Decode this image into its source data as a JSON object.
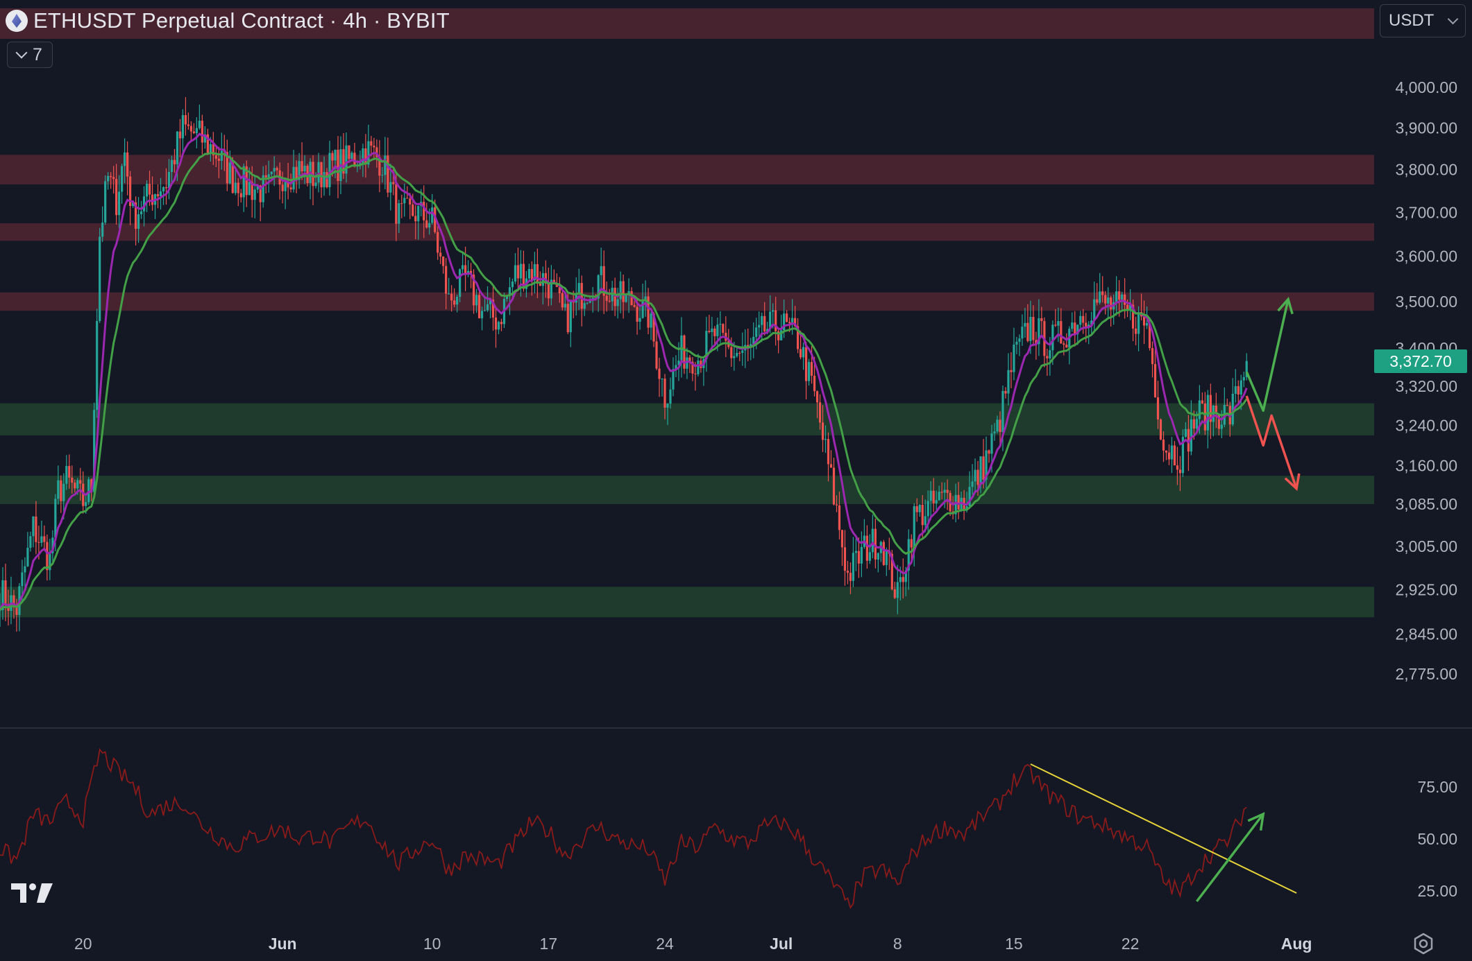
{
  "header": {
    "title": "ETHUSDT Perpetual Contract · 4h · BYBIT",
    "indicator_count": "7",
    "currency": "USDT"
  },
  "price_tag": "3,372.70",
  "colors": {
    "background": "#141824",
    "bull": "#26a69a",
    "bear": "#ef5350",
    "ema_fast": "#9c27b0",
    "ema_slow": "#43a047",
    "resistance_zone": "#4a2430",
    "support_zone": "#1f3d2e",
    "rsi": "#8b1a1a",
    "trendline": "#e6d33a",
    "arrow_up": "#4caf50",
    "arrow_down": "#ef5350"
  },
  "chart_data": [
    {
      "type": "candlestick",
      "title": "ETHUSDT Perpetual Contract · 4h · BYBIT",
      "price_axis": {
        "ticks": [
          "4,000.00",
          "3,900.00",
          "3,800.00",
          "3,700.00",
          "3,600.00",
          "3,500.00",
          "3,400.00",
          "3,320.00",
          "3,240.00",
          "3,160.00",
          "3,085.00",
          "3,005.00",
          "2,925.00",
          "2,845.00",
          "2,775.00"
        ],
        "ylim": [
          2730,
          4080
        ],
        "scale": "log"
      },
      "time_axis": {
        "ticks": [
          "20",
          "Jun",
          "10",
          "17",
          "24",
          "Jul",
          "8",
          "15",
          "22",
          "Aug"
        ],
        "range": [
          "May 15",
          "Aug 1"
        ]
      },
      "last_price": 3372.7,
      "waypoints": [
        [
          "May 15",
          2920
        ],
        [
          "May 16",
          2890
        ],
        [
          "May 17",
          3040
        ],
        [
          "May 18",
          2980
        ],
        [
          "May 18 12h",
          3110
        ],
        [
          "May 19",
          3130
        ],
        [
          "May 20",
          3090
        ],
        [
          "May 20 12h",
          3120
        ],
        [
          "May 21",
          3650
        ],
        [
          "May 21 12h",
          3780
        ],
        [
          "May 22",
          3730
        ],
        [
          "May 22 12h",
          3840
        ],
        [
          "May 23",
          3690
        ],
        [
          "May 24",
          3740
        ],
        [
          "May 25",
          3770
        ],
        [
          "May 26",
          3900
        ],
        [
          "May 27",
          3880
        ],
        [
          "May 28",
          3840
        ],
        [
          "May 29",
          3780
        ],
        [
          "May 30",
          3760
        ],
        [
          "May 31",
          3750
        ],
        [
          "Jun 1",
          3790
        ],
        [
          "Jun 2",
          3800
        ],
        [
          "Jun 3",
          3780
        ],
        [
          "Jun 4",
          3810
        ],
        [
          "Jun 5",
          3820
        ],
        [
          "Jun 6",
          3850
        ],
        [
          "Jun 7",
          3820
        ],
        [
          "Jun 8",
          3690
        ],
        [
          "Jun 9",
          3700
        ],
        [
          "Jun 10",
          3680
        ],
        [
          "Jun 11",
          3500
        ],
        [
          "Jun 12",
          3550
        ],
        [
          "Jun 13",
          3480
        ],
        [
          "Jun 14",
          3460
        ],
        [
          "Jun 15",
          3560
        ],
        [
          "Jun 16",
          3570
        ],
        [
          "Jun 17",
          3540
        ],
        [
          "Jun 18",
          3460
        ],
        [
          "Jun 19",
          3520
        ],
        [
          "Jun 20",
          3550
        ],
        [
          "Jun 21",
          3510
        ],
        [
          "Jun 22",
          3500
        ],
        [
          "Jun 23",
          3470
        ],
        [
          "Jun 24",
          3300
        ],
        [
          "Jun 25",
          3390
        ],
        [
          "Jun 26",
          3380
        ],
        [
          "Jun 27",
          3430
        ],
        [
          "Jun 28",
          3390
        ],
        [
          "Jun 29",
          3390
        ],
        [
          "Jun 30",
          3440
        ],
        [
          "Jul 1",
          3450
        ],
        [
          "Jul 2",
          3420
        ],
        [
          "Jul 3",
          3300
        ],
        [
          "Jul 4",
          3130
        ],
        [
          "Jul 5",
          2950
        ],
        [
          "Jul 6",
          3000
        ],
        [
          "Jul 7",
          3020
        ],
        [
          "Jul 8",
          2910
        ],
        [
          "Jul 9",
          3060
        ],
        [
          "Jul 10",
          3080
        ],
        [
          "Jul 11",
          3100
        ],
        [
          "Jul 12",
          3090
        ],
        [
          "Jul 13",
          3150
        ],
        [
          "Jul 14",
          3230
        ],
        [
          "Jul 15",
          3380
        ],
        [
          "Jul 16",
          3450
        ],
        [
          "Jul 17",
          3410
        ],
        [
          "Jul 18",
          3430
        ],
        [
          "Jul 19",
          3470
        ],
        [
          "Jul 20",
          3500
        ],
        [
          "Jul 21",
          3490
        ],
        [
          "Jul 22",
          3470
        ],
        [
          "Jul 23",
          3450
        ],
        [
          "Jul 24",
          3200
        ],
        [
          "Jul 25",
          3180
        ],
        [
          "Jul 26",
          3260
        ],
        [
          "Jul 27",
          3270
        ],
        [
          "Jul 28",
          3260
        ],
        [
          "Jul 29",
          3372.7
        ]
      ],
      "moving_averages": [
        {
          "color": "#9c27b0",
          "period": 9
        },
        {
          "color": "#43a047",
          "period": 20
        }
      ],
      "zones": [
        {
          "kind": "resistance",
          "from": 3765,
          "to": 3835
        },
        {
          "kind": "resistance",
          "from": 3635,
          "to": 3675
        },
        {
          "kind": "resistance",
          "from": 3480,
          "to": 3520
        },
        {
          "kind": "support",
          "from": 3220,
          "to": 3285
        },
        {
          "kind": "support",
          "from": 3085,
          "to": 3140
        },
        {
          "kind": "support",
          "from": 2875,
          "to": 2930
        }
      ],
      "projections": [
        {
          "direction": "up",
          "path": [
            [
              "Jul 29",
              3350
            ],
            [
              "Jul 30",
              3270
            ],
            [
              "Jul 31 12h",
              3505
            ]
          ]
        },
        {
          "direction": "down",
          "path": [
            [
              "Jul 29",
              3300
            ],
            [
              "Jul 30",
              3200
            ],
            [
              "Jul 30 12h",
              3260
            ],
            [
              "Aug 1",
              3115
            ]
          ]
        }
      ]
    },
    {
      "type": "line",
      "series": [
        {
          "name": "",
          "color": "#8b1a1a"
        }
      ],
      "y_ticks": [
        "75.00",
        "50.00",
        "25.00"
      ],
      "ylim": [
        10,
        95
      ],
      "waypoints": [
        [
          "May 15",
          45
        ],
        [
          "May 16",
          40
        ],
        [
          "May 17",
          62
        ],
        [
          "May 18",
          58
        ],
        [
          "May 19",
          68
        ],
        [
          "May 20",
          60
        ],
        [
          "May 21",
          92
        ],
        [
          "May 22",
          83
        ],
        [
          "May 23",
          76
        ],
        [
          "May 24",
          62
        ],
        [
          "May 25",
          66
        ],
        [
          "May 26",
          68
        ],
        [
          "May 27",
          58
        ],
        [
          "May 28",
          52
        ],
        [
          "May 29",
          46
        ],
        [
          "May 30",
          50
        ],
        [
          "Jun 1",
          55
        ],
        [
          "Jun 2",
          50
        ],
        [
          "Jun 3",
          52
        ],
        [
          "Jun 4",
          48
        ],
        [
          "Jun 5",
          56
        ],
        [
          "Jun 6",
          60
        ],
        [
          "Jun 7",
          48
        ],
        [
          "Jun 8",
          38
        ],
        [
          "Jun 9",
          45
        ],
        [
          "Jun 10",
          50
        ],
        [
          "Jun 11",
          35
        ],
        [
          "Jun 12",
          42
        ],
        [
          "Jun 13",
          40
        ],
        [
          "Jun 14",
          38
        ],
        [
          "Jun 15",
          48
        ],
        [
          "Jun 16",
          58
        ],
        [
          "Jun 17",
          54
        ],
        [
          "Jun 18",
          42
        ],
        [
          "Jun 19",
          50
        ],
        [
          "Jun 20",
          56
        ],
        [
          "Jun 21",
          50
        ],
        [
          "Jun 22",
          47
        ],
        [
          "Jun 23",
          45
        ],
        [
          "Jun 24",
          30
        ],
        [
          "Jun 25",
          48
        ],
        [
          "Jun 26",
          46
        ],
        [
          "Jun 27",
          56
        ],
        [
          "Jun 28",
          50
        ],
        [
          "Jun 29",
          48
        ],
        [
          "Jun 30",
          56
        ],
        [
          "Jul 1",
          58
        ],
        [
          "Jul 2",
          52
        ],
        [
          "Jul 3",
          40
        ],
        [
          "Jul 4",
          30
        ],
        [
          "Jul 5",
          18
        ],
        [
          "Jul 6",
          32
        ],
        [
          "Jul 7",
          36
        ],
        [
          "Jul 8",
          28
        ],
        [
          "Jul 9",
          44
        ],
        [
          "Jul 10",
          52
        ],
        [
          "Jul 11",
          56
        ],
        [
          "Jul 12",
          52
        ],
        [
          "Jul 13",
          60
        ],
        [
          "Jul 14",
          66
        ],
        [
          "Jul 15",
          78
        ],
        [
          "Jul 16",
          82
        ],
        [
          "Jul 17",
          72
        ],
        [
          "Jul 18",
          66
        ],
        [
          "Jul 19",
          60
        ],
        [
          "Jul 20",
          58
        ],
        [
          "Jul 21",
          54
        ],
        [
          "Jul 22",
          50
        ],
        [
          "Jul 23",
          46
        ],
        [
          "Jul 24",
          30
        ],
        [
          "Jul 25",
          24
        ],
        [
          "Jul 26",
          36
        ],
        [
          "Jul 27",
          44
        ],
        [
          "Jul 28",
          50
        ],
        [
          "Jul 29",
          66
        ]
      ],
      "trendline": [
        [
          "Jul 16",
          86
        ],
        [
          "Aug 1",
          24
        ]
      ],
      "breakout_arrow": [
        [
          "Jul 26",
          20
        ],
        [
          "Jul 30",
          62
        ]
      ]
    }
  ]
}
